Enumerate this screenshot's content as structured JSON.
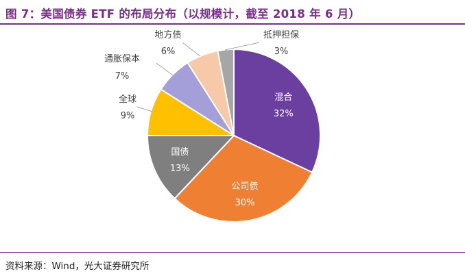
{
  "header": {
    "title": "图 7：美国债券 ETF 的布局分布（以规模计，截至 2018 年 6 月）"
  },
  "footer": {
    "source": "资料来源：Wind，光大证券研究所"
  },
  "chart_data": {
    "type": "pie",
    "title": "",
    "start_angle_deg": 0,
    "direction": "clockwise",
    "slices": [
      {
        "label": "混合",
        "value": 32,
        "value_label": "32%",
        "color": "#6a3fa0",
        "label_inside": true
      },
      {
        "label": "公司债",
        "value": 30,
        "value_label": "30%",
        "color": "#ef7f32",
        "label_inside": true
      },
      {
        "label": "国债",
        "value": 13,
        "value_label": "13%",
        "color": "#7f7f7f",
        "label_inside": true
      },
      {
        "label": "全球",
        "value": 9,
        "value_label": "9%",
        "color": "#ffc000",
        "label_inside": false
      },
      {
        "label": "通胀保本",
        "value": 7,
        "value_label": "7%",
        "color": "#a49fd8",
        "label_inside": false
      },
      {
        "label": "地方债",
        "value": 6,
        "value_label": "6%",
        "color": "#f7c9a9",
        "label_inside": false
      },
      {
        "label": "抵押担保",
        "value": 3,
        "value_label": "3%",
        "color": "#a6a6a6",
        "label_inside": false
      }
    ]
  }
}
